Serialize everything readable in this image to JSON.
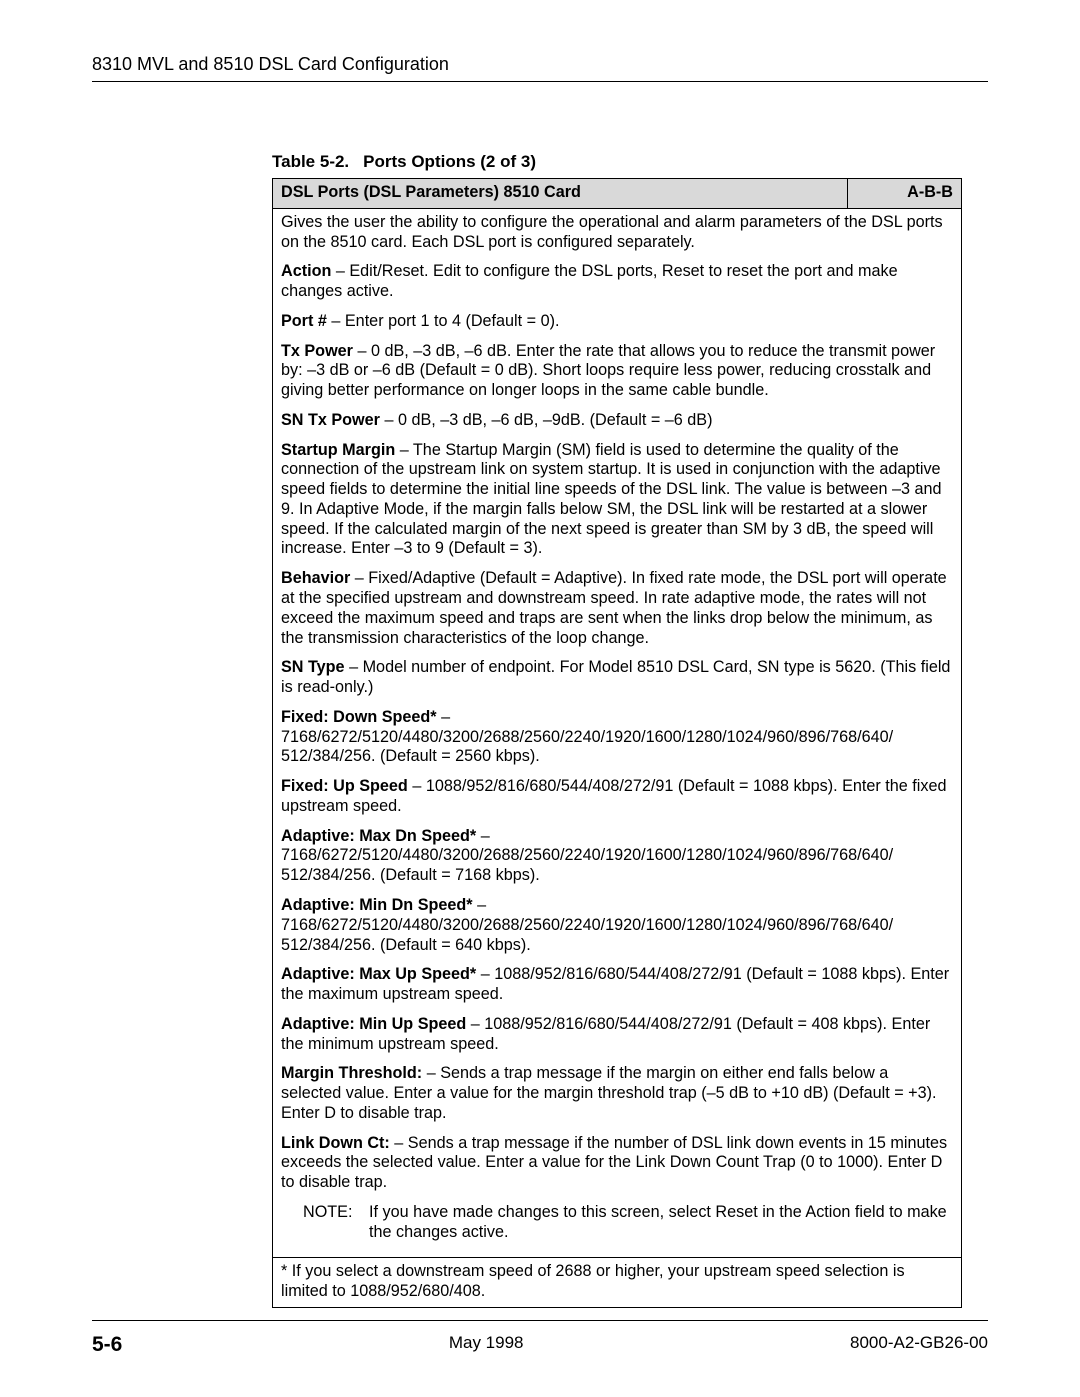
{
  "header": {
    "title": "8310 MVL and 8510 DSL Card Configuration"
  },
  "table": {
    "caption_number": "Table 5-2.",
    "caption_title": "Ports Options (2 of 3)",
    "header_left": "DSL Ports (DSL Parameters) 8510 Card",
    "header_right": "A-B-B",
    "intro": "Gives the user the ability to configure the operational and alarm parameters of the DSL ports on the 8510 card. Each DSL port is configured separately.",
    "action_label": "Action",
    "action_text": " – Edit/Reset. Edit to configure the DSL ports, Reset to reset the port and make changes active.",
    "port_label": "Port #",
    "port_text": " – Enter port 1 to 4 (Default = 0).",
    "txpower_label": "Tx Power",
    "txpower_text": " – 0 dB, –3 dB, –6 dB. Enter the rate that allows you to reduce the transmit power by: –3 dB or –6 dB (Default = 0 dB). Short loops require less power, reducing crosstalk and giving better performance on longer loops in the same cable bundle.",
    "sntx_label": "SN Tx Power",
    "sntx_text": " – 0 dB, –3 dB, –6 dB, –9dB. (Default = –6 dB)",
    "startup_label": "Startup Margin",
    "startup_text": " – The Startup Margin (SM) field is used to determine the quality of the connection of the upstream link on system startup. It is used in conjunction with the adaptive speed fields to determine the initial line speeds of the DSL link. The value is between –3 and 9. In Adaptive Mode, if the margin falls below SM, the DSL link will be restarted at a slower speed. If the calculated margin of the next speed is greater than SM by 3 dB, the speed will increase. Enter –3 to 9 (Default = 3).",
    "behavior_label": "Behavior",
    "behavior_text": " – Fixed/Adaptive (Default = Adaptive). In fixed rate mode, the DSL port will operate at the specified upstream and downstream speed. In rate adaptive mode, the rates will not exceed the maximum speed and traps are sent when the links drop below the minimum, as the transmission characteristics of the loop change.",
    "sntype_label": "SN Type",
    "sntype_text": " – Model number of endpoint. For Model 8510 DSL Card, SN type is 5620. (This field is read-only.)",
    "fds_label": "Fixed: Down Speed*",
    "fds_dash": " –",
    "fds_text": "7168/6272/5120/4480/3200/2688/2560/2240/1920/1600/1280/1024/960/896/768/640/ 512/384/256. (Default = 2560 kbps).",
    "fus_label": "Fixed: Up Speed",
    "fus_text": " – 1088/952/816/680/544/408/272/91 (Default = 1088 kbps). Enter the fixed upstream speed.",
    "amd_label": "Adaptive: Max Dn Speed*",
    "amd_dash": " –",
    "amd_text": "7168/6272/5120/4480/3200/2688/2560/2240/1920/1600/1280/1024/960/896/768/640/ 512/384/256. (Default = 7168 kbps).",
    "amind_label": "Adaptive: Min Dn Speed*",
    "amind_dash": " –",
    "amind_text": "7168/6272/5120/4480/3200/2688/2560/2240/1920/1600/1280/1024/960/896/768/640/ 512/384/256. (Default = 640 kbps).",
    "amu_label": "Adaptive: Max Up Speed*",
    "amu_text": " – 1088/952/816/680/544/408/272/91 (Default = 1088 kbps). Enter the maximum upstream speed.",
    "aminu_label": "Adaptive: Min Up Speed",
    "aminu_text": " – 1088/952/816/680/544/408/272/91 (Default = 408 kbps). Enter the minimum upstream speed.",
    "margin_label": "Margin Threshold:",
    "margin_text": " – Sends a trap message if the margin on either end falls below a selected value. Enter a value for the margin threshold trap (–5 dB to +10 dB) (Default = +3). Enter D to disable trap.",
    "linkdown_label": "Link Down Ct:",
    "linkdown_text": " – Sends a trap message if the number of DSL link down events in 15 minutes exceeds the selected value. Enter a value for the Link Down Count Trap (0 to 1000). Enter D to disable trap.",
    "note_label": "NOTE:",
    "note_text": "If you have made changes to this screen, select Reset in the Action field to make the changes active.",
    "footnote": "* If you select a downstream speed of 2688 or higher, your upstream speed selection is limited to 1088/952/680/408."
  },
  "footer": {
    "page": "5-6",
    "date": "May 1998",
    "docnum": "8000-A2-GB26-00"
  }
}
